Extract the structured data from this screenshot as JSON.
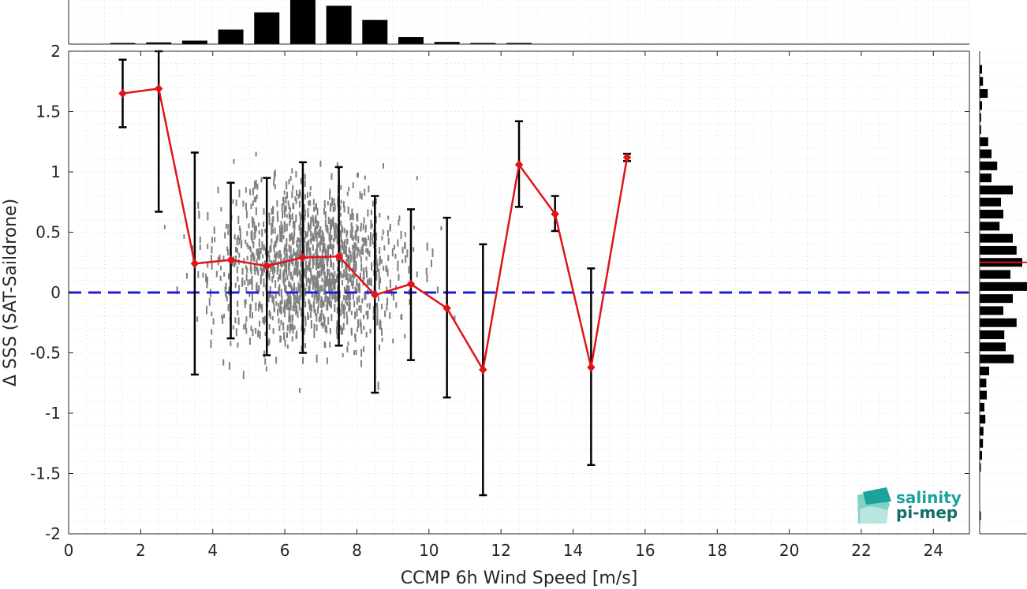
{
  "chart_data": {
    "type": "scatter",
    "xlabel": "CCMP 6h Wind Speed [m/s]",
    "ylabel": "Δ SSS (SAT-Saildrone)",
    "xlim": [
      0,
      25
    ],
    "ylim": [
      -2,
      2
    ],
    "x_ticks": [
      0,
      2,
      4,
      6,
      8,
      10,
      12,
      14,
      16,
      18,
      20,
      22,
      24
    ],
    "y_ticks": [
      2,
      1.5,
      1,
      0.5,
      0,
      -0.5,
      -1,
      -1.5,
      -2
    ],
    "grid": "dotted minor grid",
    "reference_line": {
      "y": 0,
      "style": "dashed",
      "color": "#1f1fd6"
    },
    "binned_mean": {
      "color": "#e0141a",
      "x": [
        1.5,
        2.5,
        3.5,
        4.5,
        5.5,
        6.5,
        7.5,
        8.5,
        9.5,
        10.5,
        11.5,
        12.5,
        13.5,
        14.5,
        15.5
      ],
      "y": [
        1.65,
        1.69,
        0.24,
        0.27,
        0.22,
        0.29,
        0.3,
        -0.02,
        0.07,
        -0.13,
        -0.64,
        1.06,
        0.65,
        -0.62,
        1.12
      ],
      "err_low": [
        1.37,
        0.67,
        -0.68,
        -0.38,
        -0.52,
        -0.5,
        -0.44,
        -0.83,
        -0.56,
        -0.87,
        -1.68,
        0.71,
        0.51,
        -1.43,
        1.09
      ],
      "err_high": [
        1.93,
        2.0,
        1.16,
        0.91,
        0.95,
        1.08,
        1.04,
        0.8,
        0.69,
        0.62,
        0.4,
        1.42,
        0.8,
        0.2,
        1.15
      ]
    },
    "scatter_color": "#808080",
    "scatter_stats": {
      "x_mean": 6.7,
      "x_sd": 1.8,
      "y_mean": 0.22,
      "y_sd": 0.42,
      "n_points": 1400
    },
    "top_histogram": {
      "bin_centers": [
        1.5,
        2.5,
        3.5,
        4.5,
        5.5,
        6.5,
        7.5,
        8.5,
        9.5,
        10.5,
        11.5,
        12.5
      ],
      "relative_counts": [
        0.02,
        0.04,
        0.08,
        0.33,
        0.72,
        1.0,
        0.87,
        0.55,
        0.16,
        0.05,
        0.02,
        0.01
      ]
    },
    "right_histogram": {
      "y_bins": [
        1.85,
        1.75,
        1.65,
        1.55,
        1.45,
        1.35,
        1.25,
        1.15,
        1.05,
        0.95,
        0.85,
        0.75,
        0.65,
        0.55,
        0.45,
        0.35,
        0.25,
        0.15,
        0.05,
        -0.05,
        -0.15,
        -0.25,
        -0.35,
        -0.45,
        -0.55,
        -0.65,
        -0.75,
        -0.85,
        -0.95,
        -1.05,
        -1.15,
        -1.25,
        -1.35,
        -1.45,
        -1.55,
        -1.65,
        -1.75,
        -1.85
      ],
      "relative_counts": [
        0.05,
        0.07,
        0.17,
        0.05,
        0.03,
        0.03,
        0.18,
        0.25,
        0.37,
        0.25,
        0.7,
        0.45,
        0.5,
        0.42,
        0.7,
        0.78,
        0.9,
        0.65,
        1.0,
        0.7,
        0.5,
        0.78,
        0.52,
        0.55,
        0.72,
        0.2,
        0.14,
        0.15,
        0.1,
        0.12,
        0.08,
        0.07,
        0.05,
        0.02,
        0.0,
        0.0,
        0.0,
        0.02
      ],
      "mean_marker_y": 0.25,
      "mean_marker_color": "#e0141a"
    }
  },
  "logo": {
    "line1": "salinity",
    "line2": "pi-mep",
    "color": "#1aa39a"
  }
}
